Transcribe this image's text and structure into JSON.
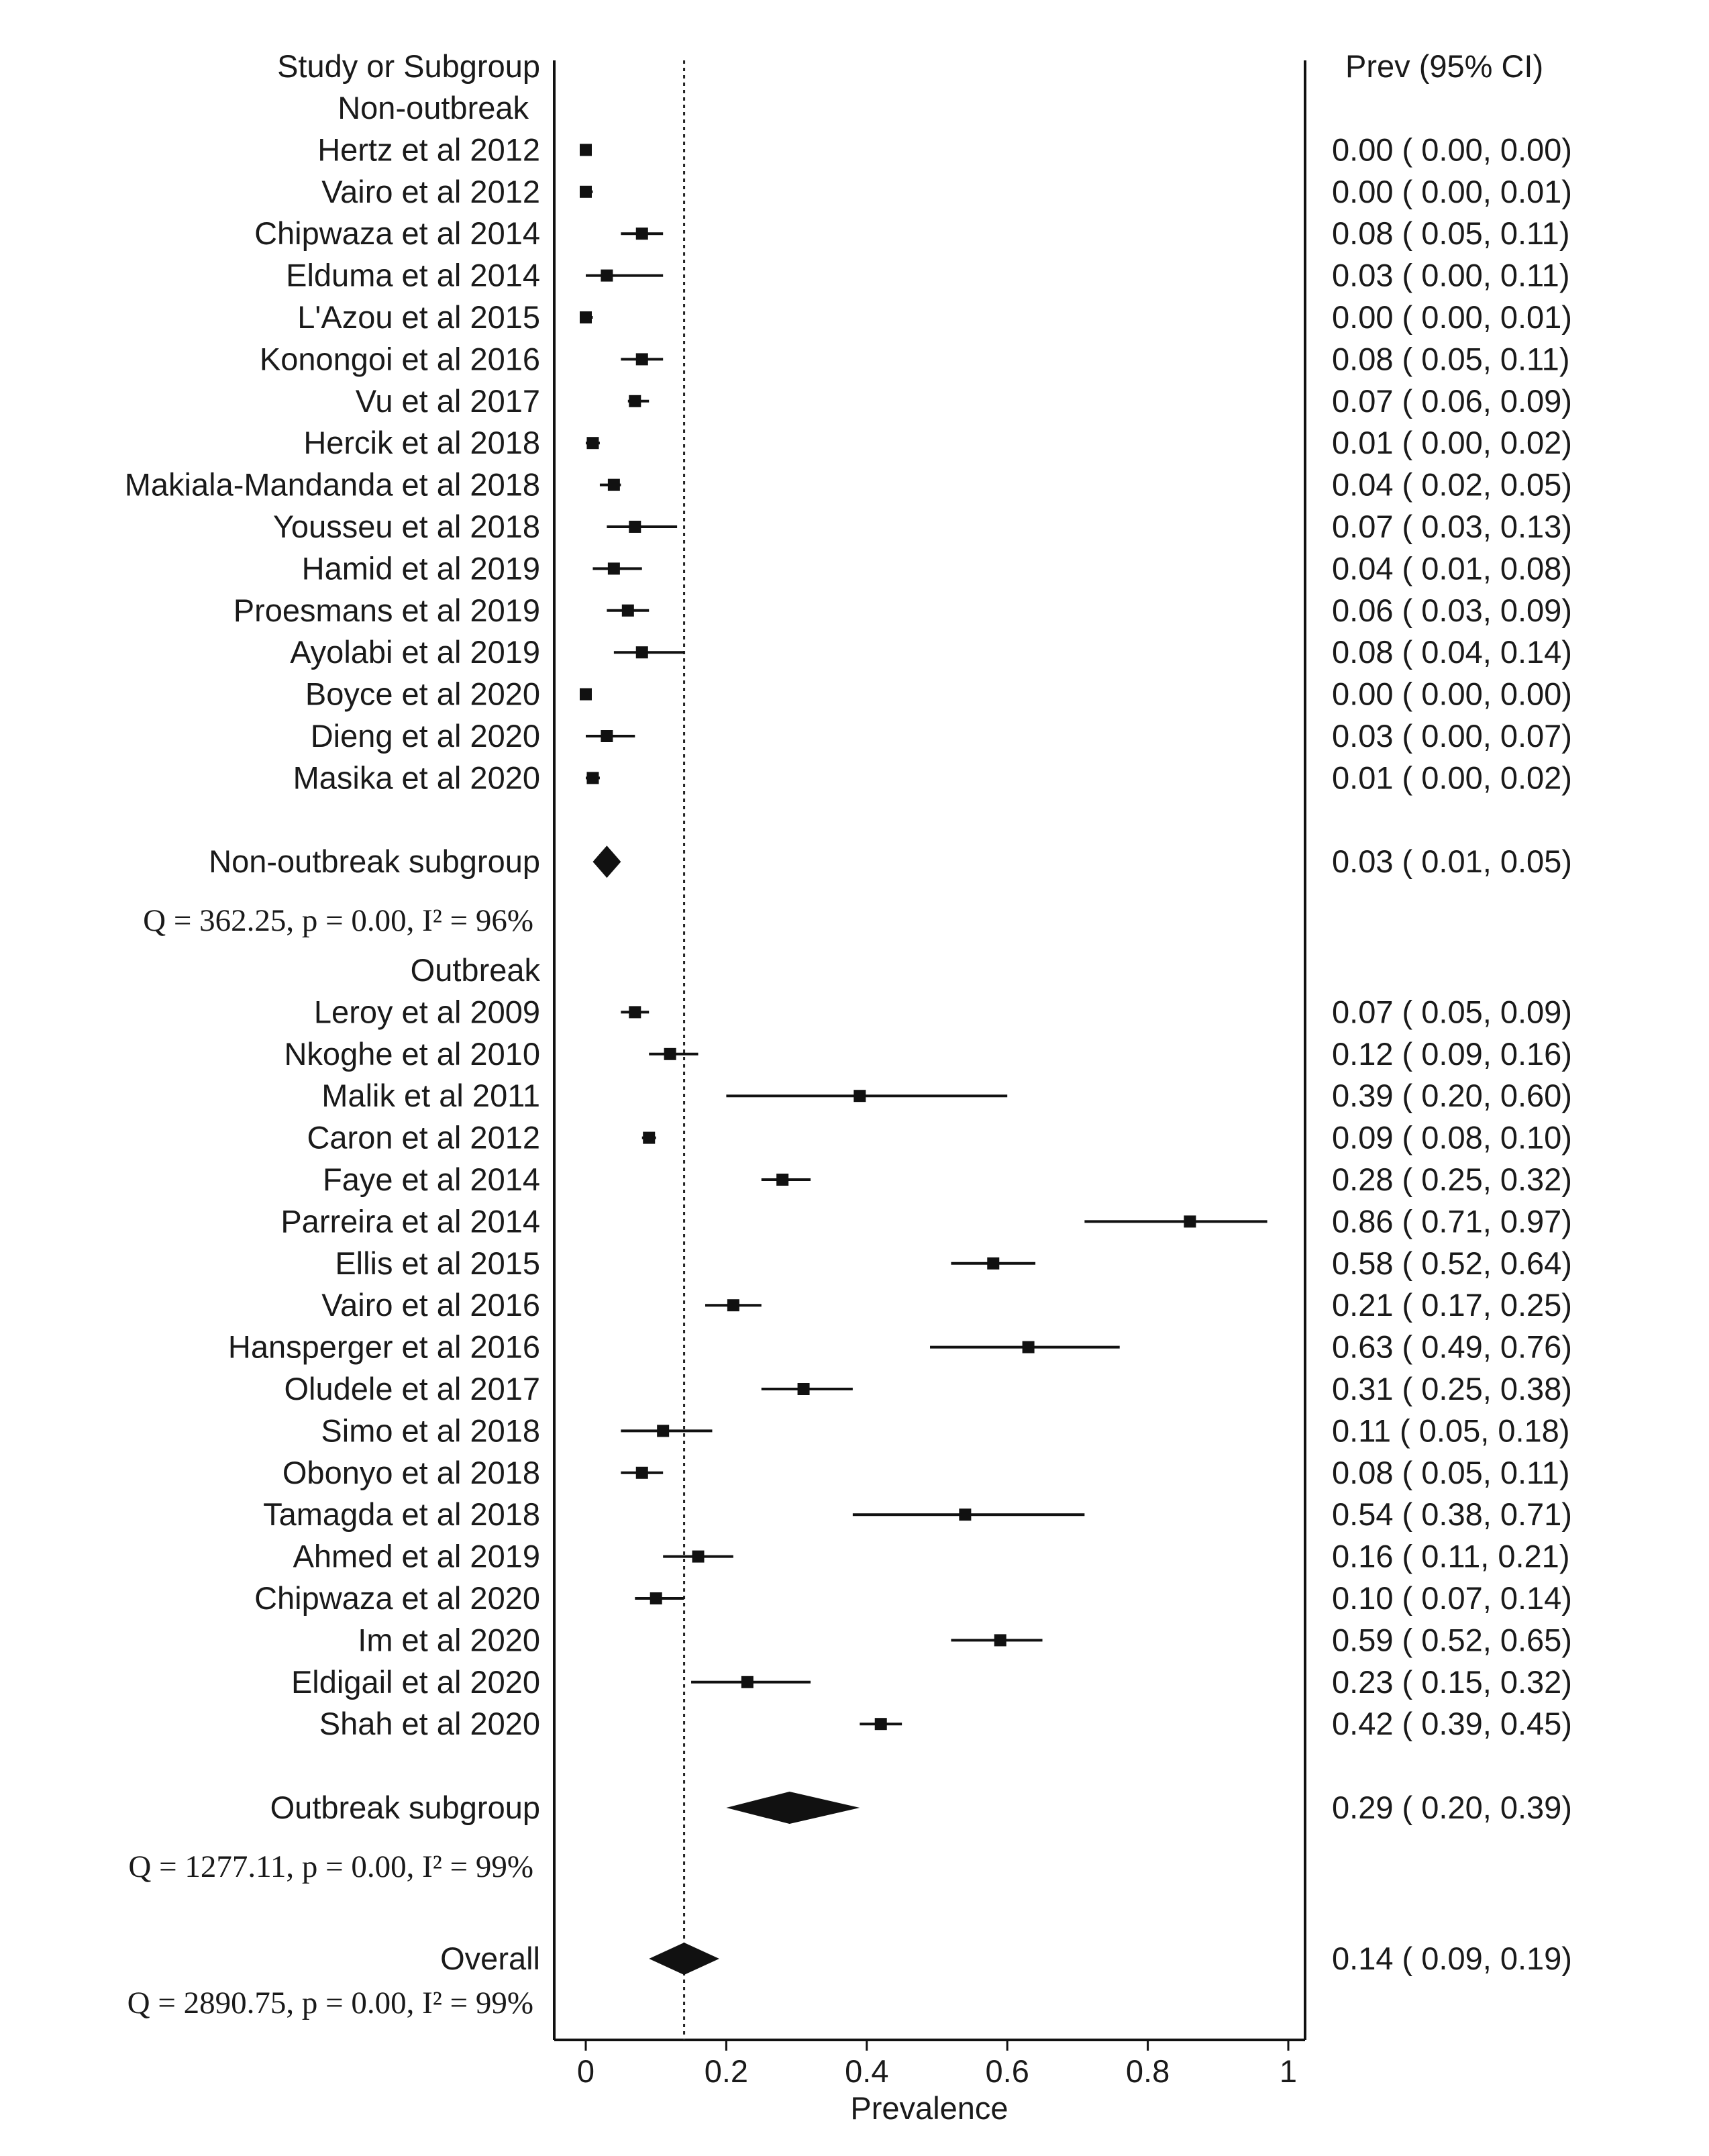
{
  "chart_data": {
    "type": "forest",
    "xlabel": "Prevalence",
    "xlim": [
      0,
      1
    ],
    "xticks": [
      "0",
      "0.2",
      "0.4",
      "0.6",
      "0.8",
      "1"
    ],
    "xtick_values": [
      0,
      0.2,
      0.4,
      0.6,
      0.8,
      1
    ],
    "reference_line": 0.14,
    "column_headers": {
      "study": "Study or Subgroup",
      "estimate": "Prev (95% CI)"
    },
    "groups": [
      {
        "name": "Non-outbreak",
        "studies": [
          {
            "label": "Hertz et al 2012",
            "prev": 0.0,
            "lo": 0.0,
            "hi": 0.0,
            "ci_text": "0.00  (  0.00,  0.00)"
          },
          {
            "label": "Vairo et al 2012",
            "prev": 0.0,
            "lo": 0.0,
            "hi": 0.01,
            "ci_text": "0.00  (  0.00,  0.01)"
          },
          {
            "label": "Chipwaza et al 2014",
            "prev": 0.08,
            "lo": 0.05,
            "hi": 0.11,
            "ci_text": "0.08  (  0.05,  0.11)"
          },
          {
            "label": "Elduma et al 2014",
            "prev": 0.03,
            "lo": 0.0,
            "hi": 0.11,
            "ci_text": "0.03  (  0.00,  0.11)"
          },
          {
            "label": "L'Azou et al 2015",
            "prev": 0.0,
            "lo": 0.0,
            "hi": 0.01,
            "ci_text": "0.00  (  0.00,  0.01)"
          },
          {
            "label": "Konongoi et al 2016",
            "prev": 0.08,
            "lo": 0.05,
            "hi": 0.11,
            "ci_text": "0.08  (  0.05,  0.11)"
          },
          {
            "label": "Vu et al 2017",
            "prev": 0.07,
            "lo": 0.06,
            "hi": 0.09,
            "ci_text": "0.07  (  0.06,  0.09)"
          },
          {
            "label": "Hercik et al 2018",
            "prev": 0.01,
            "lo": 0.0,
            "hi": 0.02,
            "ci_text": "0.01  (  0.00,  0.02)"
          },
          {
            "label": "Makiala-Mandanda et al 2018",
            "prev": 0.04,
            "lo": 0.02,
            "hi": 0.05,
            "ci_text": "0.04  (  0.02,  0.05)"
          },
          {
            "label": "Yousseu et al 2018",
            "prev": 0.07,
            "lo": 0.03,
            "hi": 0.13,
            "ci_text": "0.07  (  0.03,  0.13)"
          },
          {
            "label": "Hamid et al 2019",
            "prev": 0.04,
            "lo": 0.01,
            "hi": 0.08,
            "ci_text": "0.04  (  0.01,  0.08)"
          },
          {
            "label": "Proesmans et al 2019",
            "prev": 0.06,
            "lo": 0.03,
            "hi": 0.09,
            "ci_text": "0.06  (  0.03,  0.09)"
          },
          {
            "label": "Ayolabi et al 2019",
            "prev": 0.08,
            "lo": 0.04,
            "hi": 0.14,
            "ci_text": "0.08  (  0.04,  0.14)"
          },
          {
            "label": "Boyce et al 2020",
            "prev": 0.0,
            "lo": 0.0,
            "hi": 0.0,
            "ci_text": "0.00  (  0.00,  0.00)"
          },
          {
            "label": "Dieng et al 2020",
            "prev": 0.03,
            "lo": 0.0,
            "hi": 0.07,
            "ci_text": "0.03  (  0.00,  0.07)"
          },
          {
            "label": "Masika et al 2020",
            "prev": 0.01,
            "lo": 0.0,
            "hi": 0.02,
            "ci_text": "0.01  (  0.00,  0.02)"
          }
        ],
        "subgroup": {
          "label": "Non-outbreak  subgroup",
          "prev": 0.03,
          "lo": 0.01,
          "hi": 0.05,
          "ci_text": "0.03  (  0.01,  0.05)"
        },
        "heterogeneity": "Q =  362.25, p = 0.00, I² = 96%"
      },
      {
        "name": "Outbreak",
        "studies": [
          {
            "label": "Leroy et al 2009",
            "prev": 0.07,
            "lo": 0.05,
            "hi": 0.09,
            "ci_text": "0.07  (  0.05,  0.09)"
          },
          {
            "label": "Nkoghe et al 2010",
            "prev": 0.12,
            "lo": 0.09,
            "hi": 0.16,
            "ci_text": "0.12  (  0.09,  0.16)"
          },
          {
            "label": "Malik et al 2011",
            "prev": 0.39,
            "lo": 0.2,
            "hi": 0.6,
            "ci_text": "0.39  (  0.20,  0.60)"
          },
          {
            "label": "Caron et al 2012",
            "prev": 0.09,
            "lo": 0.08,
            "hi": 0.1,
            "ci_text": "0.09  (  0.08,  0.10)"
          },
          {
            "label": "Faye et al 2014",
            "prev": 0.28,
            "lo": 0.25,
            "hi": 0.32,
            "ci_text": "0.28  (  0.25,  0.32)"
          },
          {
            "label": "Parreira et al 2014",
            "prev": 0.86,
            "lo": 0.71,
            "hi": 0.97,
            "ci_text": "0.86  (  0.71,  0.97)"
          },
          {
            "label": "Ellis et al 2015",
            "prev": 0.58,
            "lo": 0.52,
            "hi": 0.64,
            "ci_text": "0.58  (  0.52,  0.64)"
          },
          {
            "label": "Vairo et al 2016",
            "prev": 0.21,
            "lo": 0.17,
            "hi": 0.25,
            "ci_text": "0.21  (  0.17,  0.25)"
          },
          {
            "label": "Hansperger et al 2016",
            "prev": 0.63,
            "lo": 0.49,
            "hi": 0.76,
            "ci_text": "0.63  (  0.49,  0.76)"
          },
          {
            "label": "Oludele et al 2017",
            "prev": 0.31,
            "lo": 0.25,
            "hi": 0.38,
            "ci_text": "0.31  (  0.25,  0.38)"
          },
          {
            "label": "Simo et al 2018",
            "prev": 0.11,
            "lo": 0.05,
            "hi": 0.18,
            "ci_text": "0.11  (  0.05,  0.18)"
          },
          {
            "label": "Obonyo et al 2018",
            "prev": 0.08,
            "lo": 0.05,
            "hi": 0.11,
            "ci_text": "0.08  (  0.05,  0.11)"
          },
          {
            "label": "Tamagda et al  2018",
            "prev": 0.54,
            "lo": 0.38,
            "hi": 0.71,
            "ci_text": "0.54  (  0.38,  0.71)"
          },
          {
            "label": "Ahmed et al 2019",
            "prev": 0.16,
            "lo": 0.11,
            "hi": 0.21,
            "ci_text": "0.16  (  0.11,  0.21)"
          },
          {
            "label": "Chipwaza et al 2020",
            "prev": 0.1,
            "lo": 0.07,
            "hi": 0.14,
            "ci_text": "0.10  (  0.07,  0.14)"
          },
          {
            "label": "Im et al 2020",
            "prev": 0.59,
            "lo": 0.52,
            "hi": 0.65,
            "ci_text": "0.59  (  0.52,  0.65)"
          },
          {
            "label": "Eldigail et al 2020",
            "prev": 0.23,
            "lo": 0.15,
            "hi": 0.32,
            "ci_text": "0.23  (  0.15,  0.32)"
          },
          {
            "label": "Shah et al 2020",
            "prev": 0.42,
            "lo": 0.39,
            "hi": 0.45,
            "ci_text": "0.42  (  0.39,  0.45)"
          }
        ],
        "subgroup": {
          "label": "Outbreak subgroup",
          "prev": 0.29,
          "lo": 0.2,
          "hi": 0.39,
          "ci_text": "0.29  (  0.20,  0.39)"
        },
        "heterogeneity": "Q = 1277.11, p = 0.00, I² = 99%"
      }
    ],
    "overall": {
      "label": "Overall",
      "prev": 0.14,
      "lo": 0.09,
      "hi": 0.19,
      "ci_text": "0.14  (  0.09,  0.19)"
    },
    "overall_heterogeneity": "Q = 2890.75, p = 0.00, I² = 99%"
  }
}
